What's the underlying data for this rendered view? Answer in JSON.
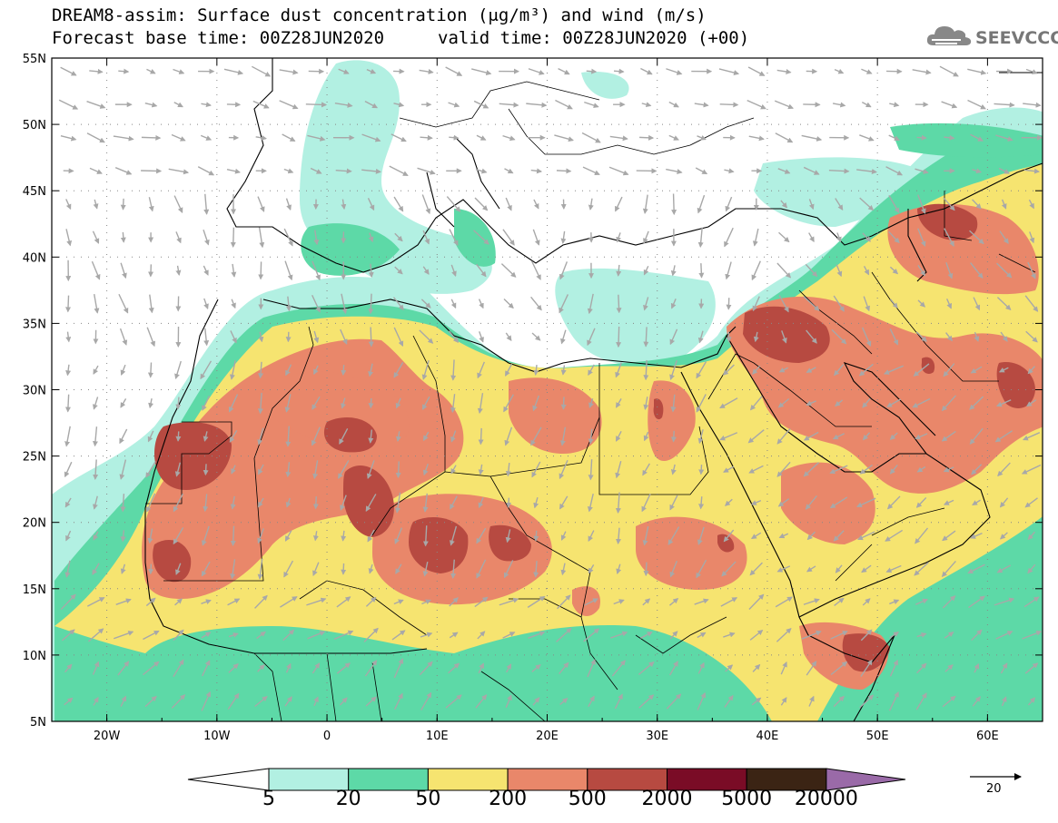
{
  "title_line1": "DREAM8-assim: Surface dust concentration (μg/m³) and wind (m/s)",
  "title_line2_left": "Forecast base time: 00Z28JUN2020",
  "title_line2_right": "valid time: 00Z28JUN2020 (+00)",
  "logo_text": "SEEVCCC",
  "logo_icon": "cloud-icon",
  "map": {
    "lon_range": [
      -25,
      65
    ],
    "lat_range": [
      5,
      55
    ],
    "lat_labels": [
      "55N",
      "50N",
      "45N",
      "40N",
      "35N",
      "30N",
      "25N",
      "20N",
      "15N",
      "10N",
      "5N"
    ],
    "lon_labels": [
      "20W",
      "10W",
      "0",
      "10E",
      "20E",
      "30E",
      "40E",
      "50E",
      "60E"
    ],
    "gridlines": "dotted"
  },
  "colorbar": {
    "levels": [
      "5",
      "20",
      "50",
      "200",
      "500",
      "2000",
      "5000",
      "20000"
    ],
    "colors": [
      "#b2f0e2",
      "#5dd9a7",
      "#f6e470",
      "#e9876a",
      "#b74a41",
      "#7a0c26",
      "#3b2414"
    ],
    "over_color": "#9a6aa8",
    "under_color": "#ffffff"
  },
  "wind_reference": {
    "value": "20",
    "unit": "m/s"
  },
  "colors": {
    "ocean": "#ffffff",
    "coast": "#000000",
    "vector": "#a8a8a8"
  }
}
